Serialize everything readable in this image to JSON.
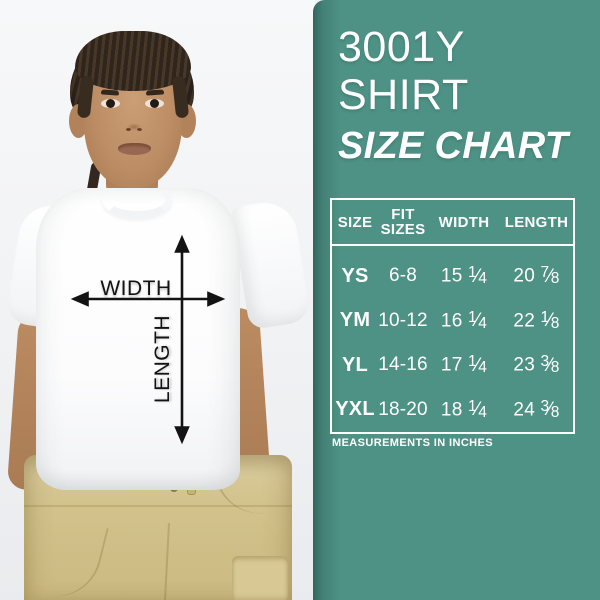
{
  "photo": {
    "width_label": "WIDTH",
    "length_label": "LENGTH",
    "description": "child model wearing white t-shirt and khaki shorts with width and length measurement arrows"
  },
  "panel": {
    "bg_color": "#4E9286",
    "text_color": "#FFFFFF",
    "title_line1": "3001Y",
    "title_line2": "SHIRT",
    "title_line3": "SIZE CHART",
    "note": "MEASUREMENTS IN INCHES"
  },
  "chart_data": {
    "type": "table",
    "title": "3001Y SHIRT SIZE CHART",
    "units": "inches",
    "columns": [
      "SIZE",
      "FIT SIZES",
      "WIDTH",
      "LENGTH"
    ],
    "rows": [
      {
        "size": "YS",
        "fit": "6-8",
        "width": "15 1/4",
        "length": "20 7/8"
      },
      {
        "size": "YM",
        "fit": "10-12",
        "width": "16 1/4",
        "length": "22 1/8"
      },
      {
        "size": "YL",
        "fit": "14-16",
        "width": "17 1/4",
        "length": "23 3/8"
      },
      {
        "size": "YXL",
        "fit": "18-20",
        "width": "18 1/4",
        "length": "24 3/8"
      }
    ]
  }
}
